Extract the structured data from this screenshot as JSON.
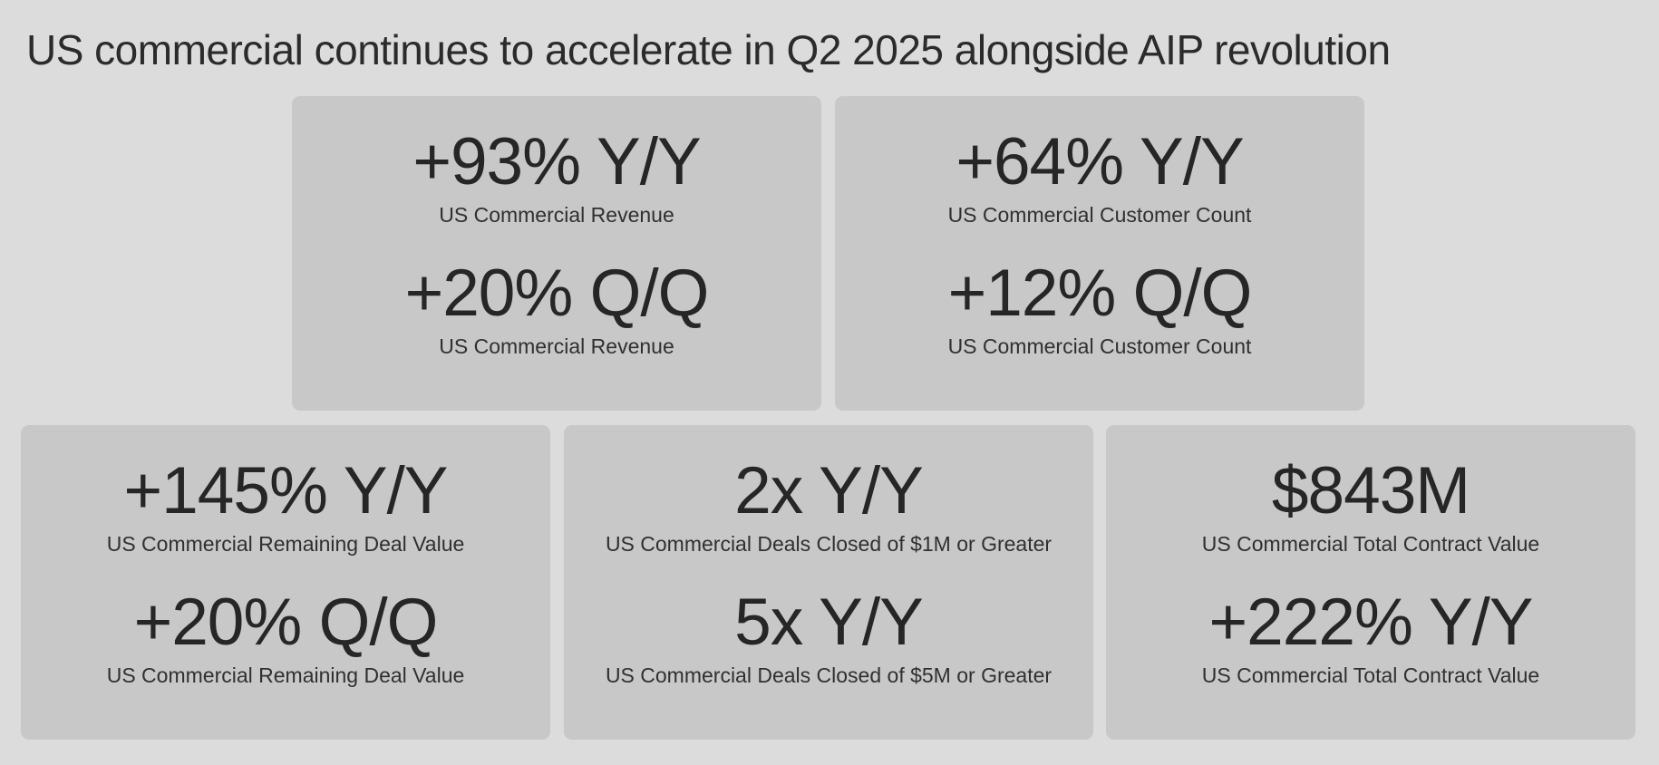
{
  "title": "US commercial continues to accelerate in Q2 2025 alongside AIP revolution",
  "colors": {
    "background": "#dcdcdc",
    "card": "#c8c8c8",
    "text": "#262626"
  },
  "cards": [
    {
      "metrics": [
        {
          "value": "+93% Y/Y",
          "label": "US Commercial Revenue"
        },
        {
          "value": "+20% Q/Q",
          "label": "US Commercial Revenue"
        }
      ]
    },
    {
      "metrics": [
        {
          "value": "+64% Y/Y",
          "label": "US Commercial Customer Count"
        },
        {
          "value": "+12% Q/Q",
          "label": "US Commercial Customer Count"
        }
      ]
    },
    {
      "metrics": [
        {
          "value": "+145% Y/Y",
          "label": "US Commercial Remaining Deal Value"
        },
        {
          "value": "+20% Q/Q",
          "label": "US Commercial Remaining Deal Value"
        }
      ]
    },
    {
      "metrics": [
        {
          "value": "2x Y/Y",
          "label": "US Commercial Deals Closed of $1M or Greater"
        },
        {
          "value": "5x Y/Y",
          "label": "US Commercial Deals Closed of $5M or Greater"
        }
      ]
    },
    {
      "metrics": [
        {
          "value": "$843M",
          "label": "US Commercial Total Contract Value"
        },
        {
          "value": "+222% Y/Y",
          "label": "US Commercial Total Contract Value"
        }
      ]
    }
  ]
}
